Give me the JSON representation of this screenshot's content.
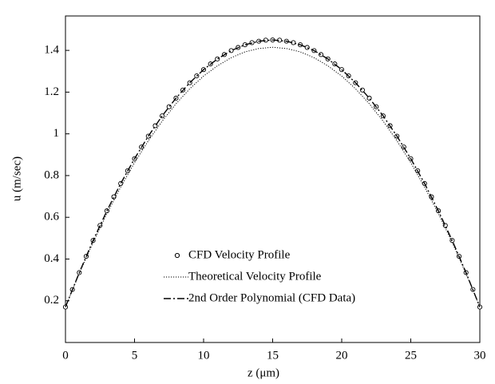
{
  "chart_data": {
    "type": "line",
    "x_label": "z (μm)",
    "y_label": "u (m/sec)",
    "xlim": [
      0,
      30
    ],
    "xticks": [
      0,
      5,
      10,
      15,
      20,
      25,
      30
    ],
    "ylim": [
      0,
      1.565
    ],
    "yticks": [
      0.2,
      0.4,
      0.6,
      0.8,
      {
        "value": 1,
        "label": "1"
      },
      1.2,
      1.4
    ],
    "grid": false,
    "legend": "lower center",
    "series": [
      {
        "name": "CFD Velocity Profile",
        "color": "#000000",
        "style": "markers",
        "x": [
          0,
          0.5,
          1,
          1.5,
          2,
          2.5,
          3,
          3.5,
          4,
          4.5,
          5,
          5.5,
          6,
          6.5,
          7,
          7.5,
          8,
          8.5,
          9,
          9.5,
          10,
          10.5,
          11,
          11.5,
          12,
          12.5,
          13,
          13.5,
          14,
          14.5,
          15,
          15.5,
          16,
          16.5,
          17,
          17.5,
          18,
          18.5,
          19,
          19.5,
          20,
          20.5,
          21,
          21.5,
          22,
          22.5,
          23,
          23.5,
          24,
          24.5,
          25,
          25.5,
          26,
          26.5,
          27,
          27.5,
          28,
          28.5,
          29,
          29.5,
          30
        ],
        "values": [
          0.17,
          0.254,
          0.335,
          0.413,
          0.489,
          0.561,
          0.631,
          0.698,
          0.762,
          0.823,
          0.881,
          0.937,
          0.989,
          1.039,
          1.086,
          1.13,
          1.171,
          1.21,
          1.245,
          1.278,
          1.308,
          1.335,
          1.359,
          1.38,
          1.399,
          1.414,
          1.427,
          1.437,
          1.444,
          1.449,
          1.45,
          1.449,
          1.444,
          1.437,
          1.427,
          1.414,
          1.399,
          1.38,
          1.359,
          1.335,
          1.308,
          1.278,
          1.245,
          1.21,
          1.171,
          1.13,
          1.086,
          1.039,
          0.989,
          0.937,
          0.881,
          0.823,
          0.762,
          0.698,
          0.631,
          0.561,
          0.489,
          0.413,
          0.335,
          0.254,
          0.17
        ]
      },
      {
        "name": "Theoretical Velocity Profile",
        "color": "#000000",
        "style": "dotted",
        "x": [
          0,
          1,
          2,
          3,
          4,
          5,
          6,
          7,
          8,
          9,
          10,
          11,
          12,
          13,
          14,
          15,
          16,
          17,
          18,
          19,
          20,
          21,
          22,
          23,
          24,
          25,
          26,
          27,
          28,
          29,
          30
        ],
        "values": [
          0.17,
          0.33,
          0.48,
          0.618,
          0.745,
          0.862,
          0.967,
          1.061,
          1.144,
          1.216,
          1.277,
          1.326,
          1.365,
          1.393,
          1.409,
          1.415,
          1.409,
          1.393,
          1.365,
          1.326,
          1.277,
          1.216,
          1.144,
          1.061,
          0.967,
          0.862,
          0.745,
          0.618,
          0.48,
          0.33,
          0.17
        ]
      },
      {
        "name": "2nd Order Polynomial (CFD Data)",
        "color": "#000000",
        "style": "dashdot",
        "x": [
          0,
          1,
          2,
          3,
          4,
          5,
          6,
          7,
          8,
          9,
          10,
          11,
          12,
          13,
          14,
          15,
          16,
          17,
          18,
          19,
          20,
          21,
          22,
          23,
          24,
          25,
          26,
          27,
          28,
          29,
          30
        ],
        "values": [
          0.17,
          0.335,
          0.489,
          0.631,
          0.762,
          0.881,
          0.989,
          1.086,
          1.171,
          1.245,
          1.308,
          1.359,
          1.399,
          1.427,
          1.444,
          1.45,
          1.444,
          1.427,
          1.399,
          1.359,
          1.308,
          1.245,
          1.171,
          1.086,
          0.989,
          0.881,
          0.762,
          0.631,
          0.489,
          0.335,
          0.17
        ]
      }
    ]
  }
}
